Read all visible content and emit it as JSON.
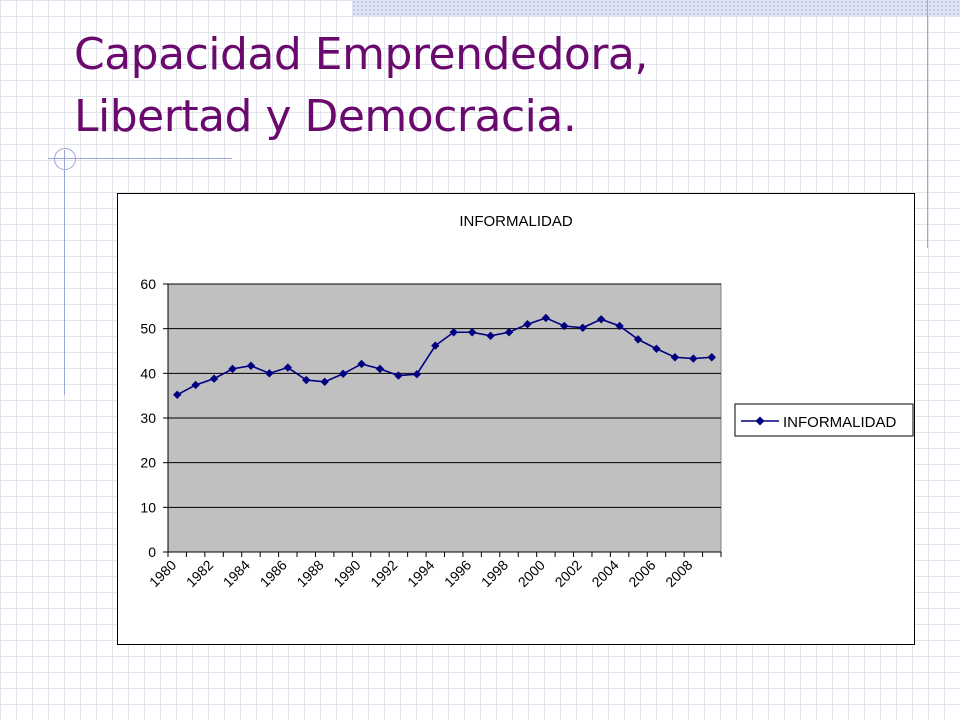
{
  "slide": {
    "title_line1": "Capacidad Emprendedora,",
    "title_line2": "Libertad y Democracia."
  },
  "colors": {
    "title": "#6a0a6e",
    "series": "#000080",
    "plot_background": "#c0c0c0",
    "gridline": "#000000"
  },
  "chart_data": {
    "type": "line",
    "title": "INFORMALIDAD",
    "xlabel": "",
    "ylabel": "",
    "ylim": [
      0,
      60
    ],
    "yticks": [
      0,
      10,
      20,
      30,
      40,
      50,
      60
    ],
    "xtick_labels": [
      "1980",
      "1982",
      "1984",
      "1986",
      "1988",
      "1990",
      "1992",
      "1994",
      "1996",
      "1998",
      "2000",
      "2002",
      "2004",
      "2006",
      "2008"
    ],
    "x": [
      1980,
      1981,
      1982,
      1983,
      1984,
      1985,
      1986,
      1987,
      1988,
      1989,
      1990,
      1991,
      1992,
      1993,
      1994,
      1995,
      1996,
      1997,
      1998,
      1999,
      2000,
      2001,
      2002,
      2003,
      2004,
      2005,
      2006,
      2007,
      2008,
      2009
    ],
    "grid": true,
    "legend_position": "right",
    "series": [
      {
        "name": "INFORMALIDAD",
        "marker": "diamond",
        "values": [
          35.2,
          37.4,
          38.8,
          41.0,
          41.7,
          40.0,
          41.3,
          38.5,
          38.1,
          39.9,
          42.1,
          41.0,
          39.5,
          39.8,
          46.2,
          49.2,
          49.2,
          48.4,
          49.2,
          51.0,
          52.4,
          50.6,
          50.2,
          52.1,
          50.6,
          47.6,
          45.5,
          43.6,
          43.3,
          43.6
        ]
      }
    ]
  }
}
